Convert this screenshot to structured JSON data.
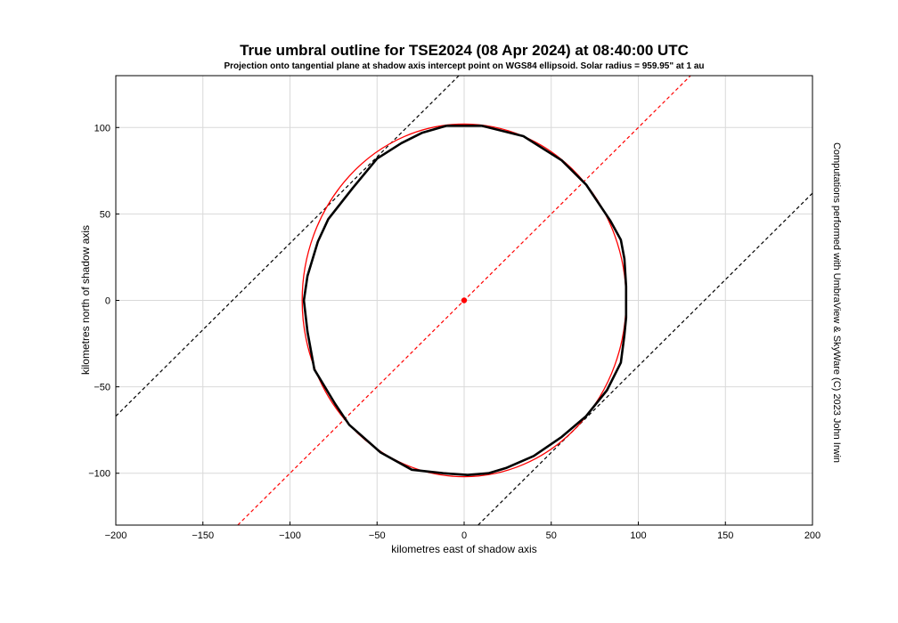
{
  "chart_data": {
    "type": "line",
    "title": "True umbral outline for TSE2024 (08 Apr 2024) at 08:40:00 UTC",
    "subtitle": "Projection onto tangential plane at shadow axis intercept point on WGS84 ellipsoid. Solar radius = 959.95\" at 1 au",
    "xlabel": "kilometres east of shadow axis",
    "ylabel": "kilometres north of shadow axis",
    "credit": "Computations performed with UmbraView & SkyWare (C) 2023 John Irwin",
    "xlim": [
      -200,
      200
    ],
    "ylim": [
      -130,
      130
    ],
    "x_ticks": [
      -200,
      -150,
      -100,
      -50,
      0,
      50,
      100,
      150,
      200
    ],
    "y_ticks": [
      -100,
      -50,
      0,
      50,
      100
    ],
    "grid": true,
    "colors": {
      "outline": "#000000",
      "ellipse": "#ff0000",
      "axis_line": "#ff0000",
      "limit_lines": "#000000"
    },
    "series": [
      {
        "style": "solid",
        "color": "#000000",
        "x": [
          -10,
          10,
          34,
          56,
          70,
          84,
          90,
          92,
          93,
          93,
          92,
          90,
          82,
          70,
          56,
          40,
          24,
          14,
          2,
          -12,
          -30,
          -48,
          -66,
          -74,
          -86,
          -90,
          -92,
          -90,
          -84,
          -78,
          -64,
          -50,
          -36,
          -24,
          -10
        ],
        "y": [
          101,
          101,
          95,
          81,
          67,
          46,
          35,
          24,
          8,
          -10,
          -20,
          -36,
          -52,
          -67,
          -79,
          -90,
          -97,
          -100,
          -101,
          -100,
          -98,
          -88,
          -72,
          -60,
          -40,
          -18,
          0,
          14,
          34,
          47,
          65,
          82,
          91,
          97,
          101
        ]
      },
      {
        "style": "solid",
        "color": "#ff0000",
        "ellipse": {
          "cx": 0,
          "cy": 0,
          "rx": 93,
          "ry": 102
        }
      },
      {
        "style": "dashed",
        "color": "#ff0000",
        "x": [
          -130,
          130
        ],
        "y": [
          -130,
          130
        ]
      },
      {
        "style": "dashed",
        "color": "#000000",
        "x": [
          -200,
          -3
        ],
        "y": [
          -67,
          130
        ]
      },
      {
        "style": "dashed",
        "color": "#000000",
        "x": [
          8,
          200
        ],
        "y": [
          -130,
          62
        ]
      },
      {
        "style": "marker",
        "color": "#ff0000",
        "x": [
          0
        ],
        "y": [
          0
        ]
      }
    ]
  }
}
